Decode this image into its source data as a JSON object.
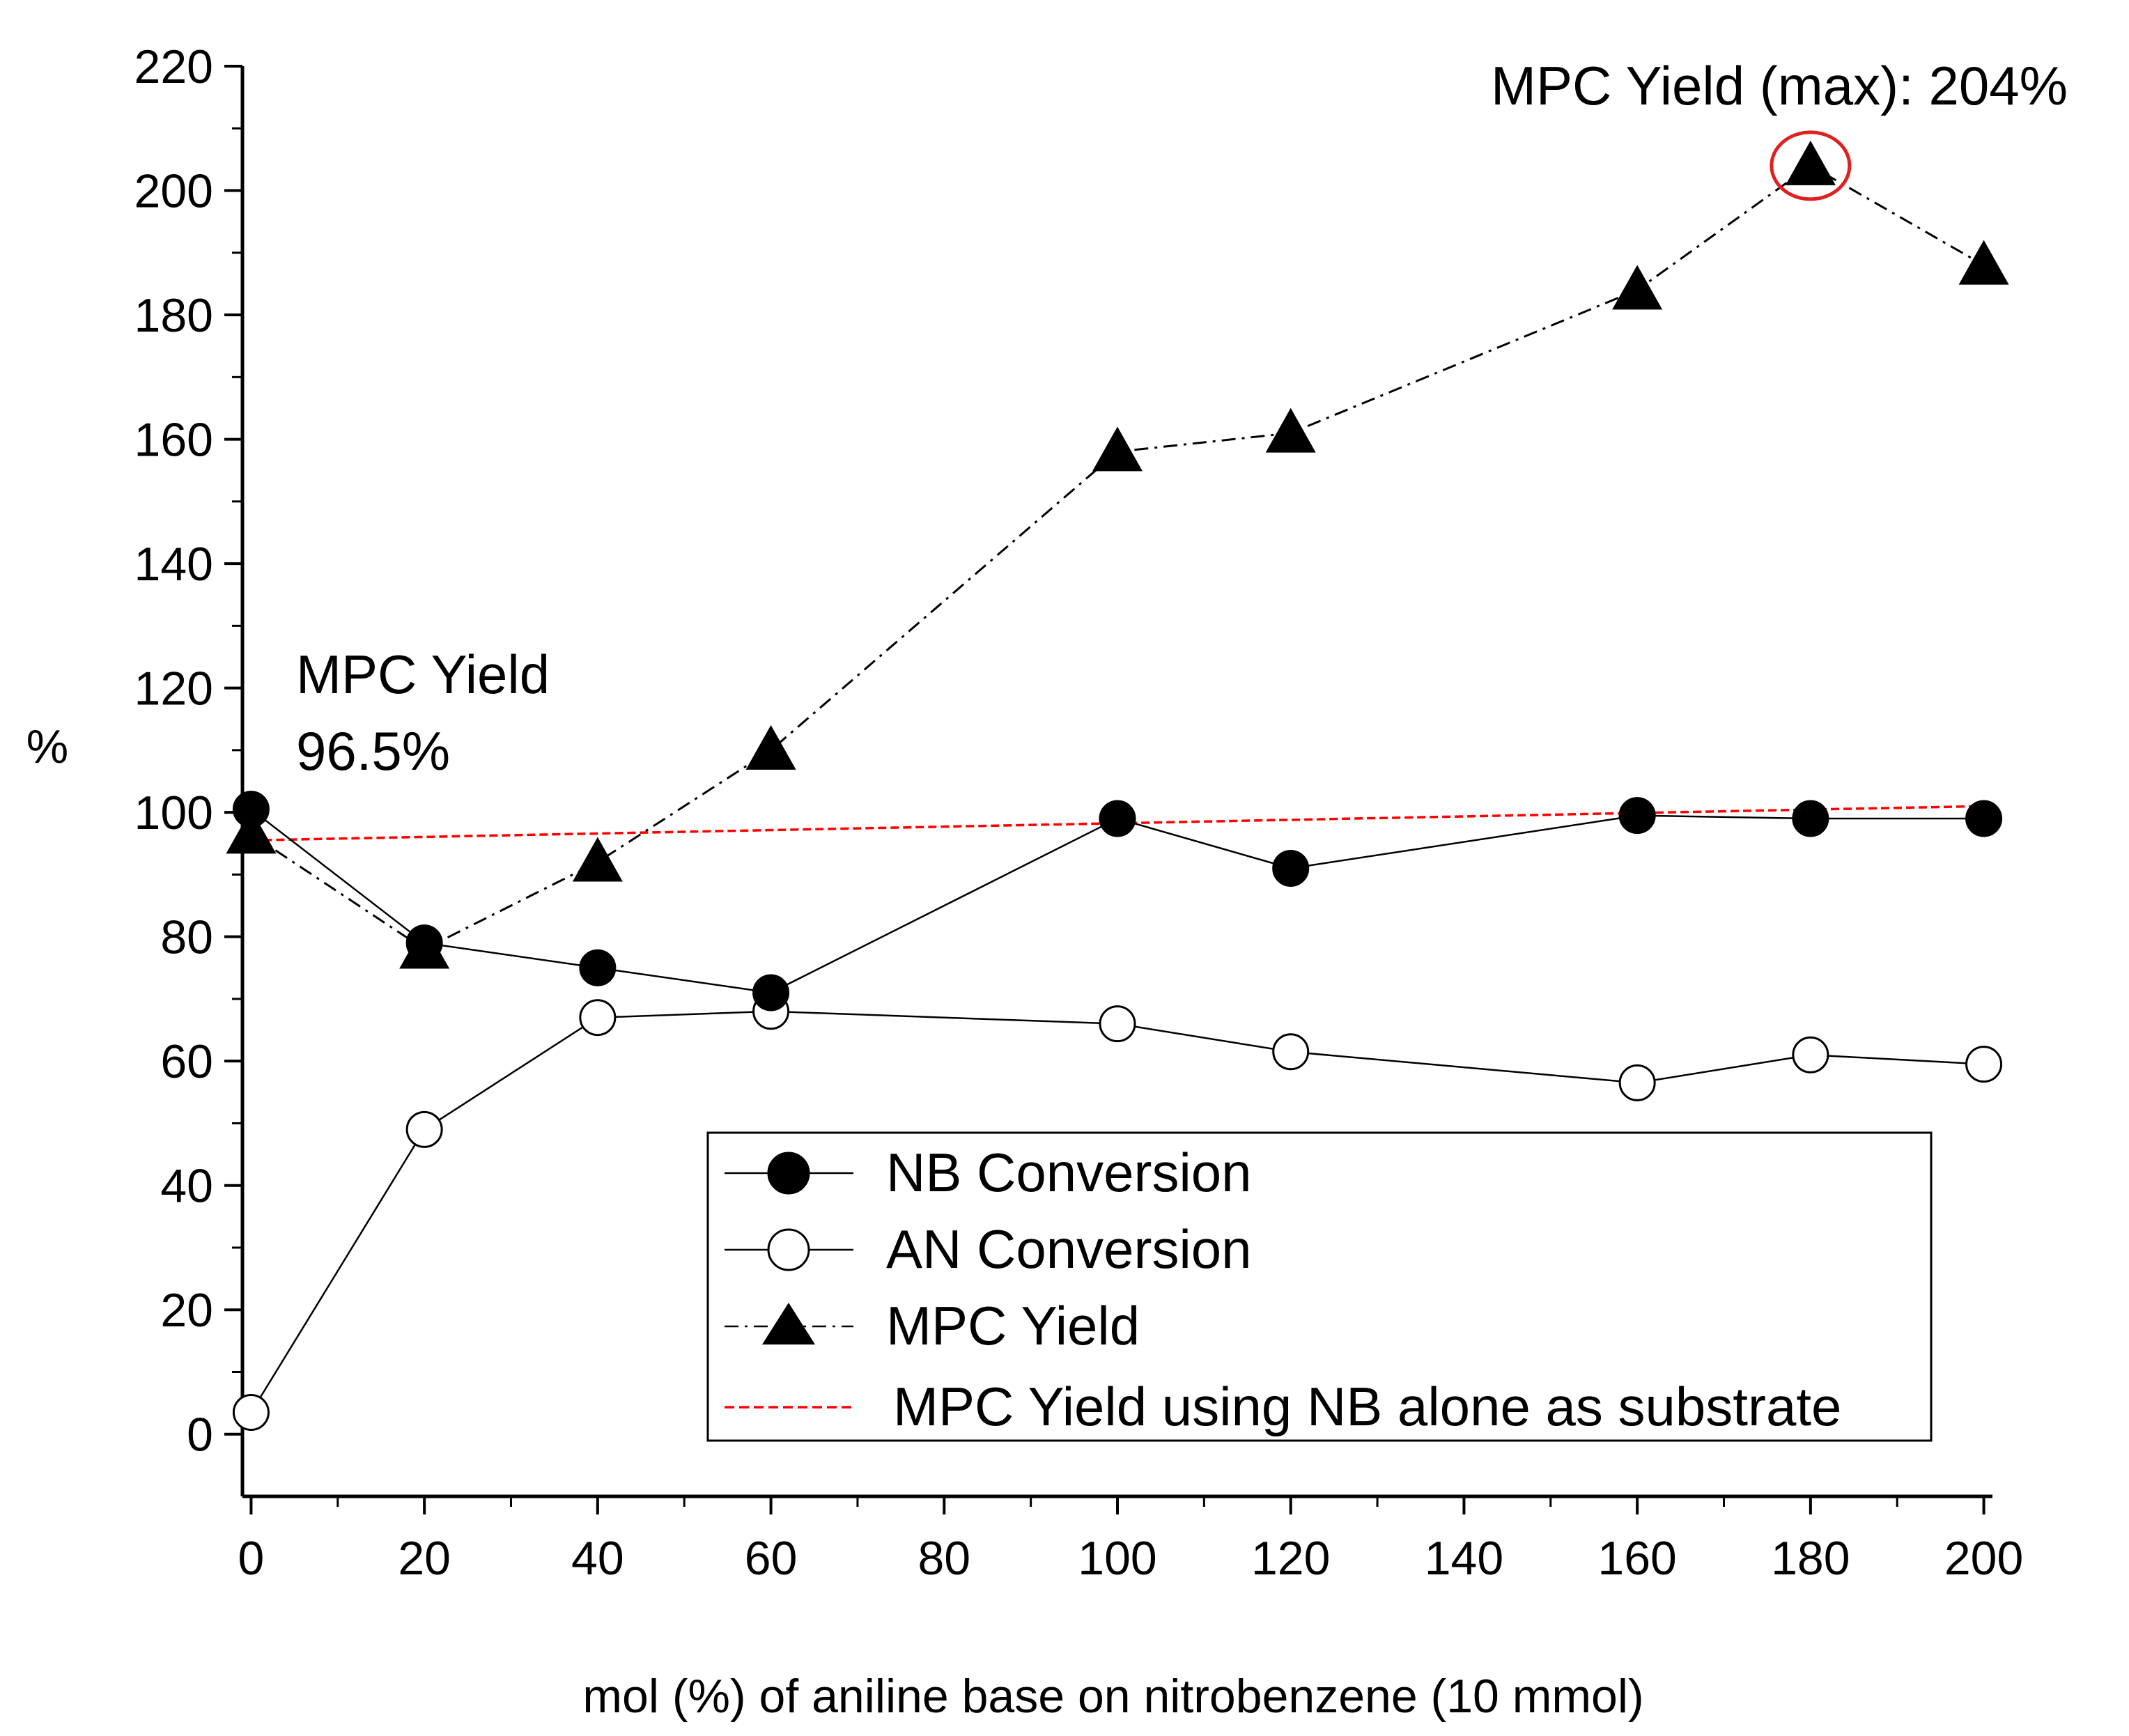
{
  "chart_data": {
    "type": "line",
    "title": "",
    "xlabel": "mol (%) of aniline base on nitrobenzene (10 mmol)",
    "ylabel": "%",
    "xlim": [
      -1,
      201
    ],
    "ylim": [
      -10,
      220
    ],
    "xticks": [
      0,
      20,
      40,
      60,
      80,
      100,
      120,
      140,
      160,
      180,
      200
    ],
    "yticks": [
      0,
      20,
      40,
      60,
      80,
      100,
      120,
      140,
      160,
      180,
      200,
      220
    ],
    "x": [
      0,
      20,
      40,
      60,
      100,
      120,
      160,
      180,
      200
    ],
    "series": [
      {
        "name": "NB Conversion",
        "marker": "filled-circle",
        "line": "solid",
        "color": "#000000",
        "values": [
          100.5,
          79,
          75,
          71,
          99,
          91,
          99.5,
          99,
          99
        ]
      },
      {
        "name": "AN Conversion",
        "marker": "open-circle",
        "line": "solid",
        "color": "#000000",
        "values": [
          3.5,
          49,
          67,
          68,
          66,
          61.5,
          56.5,
          61,
          59.5
        ]
      },
      {
        "name": "MPC Yield",
        "marker": "filled-triangle",
        "line": "dash-dot",
        "color": "#000000",
        "values": [
          96.5,
          78,
          92,
          110,
          158,
          161,
          184,
          204,
          188
        ]
      },
      {
        "name": "MPC Yield using NB alone as substrate",
        "marker": "none",
        "line": "dashed",
        "color": "#ff0000",
        "x": [
          0,
          200
        ],
        "values": [
          95.5,
          101
        ]
      }
    ],
    "legend_position": "bottom-right",
    "annotations": {
      "left_line1": "MPC Yield",
      "left_line2": "96.5%",
      "max_label": "MPC Yield (max): 204%",
      "highlight": {
        "x": 180,
        "y": 204,
        "color": "#e02020"
      }
    }
  }
}
